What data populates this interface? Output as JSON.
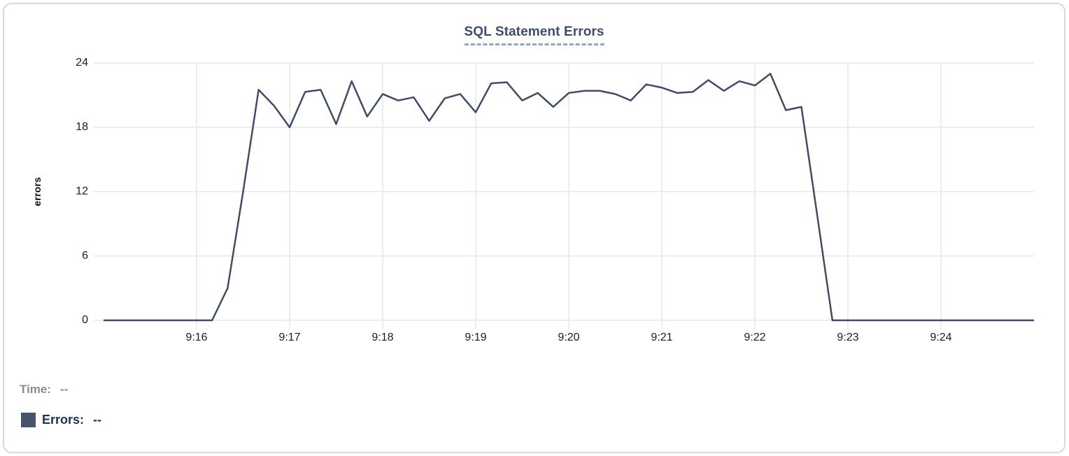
{
  "title": "SQL Statement Errors",
  "chart_data": {
    "type": "line",
    "title": "SQL Statement Errors",
    "xlabel": "",
    "ylabel": "errors",
    "ylim": [
      0,
      24
    ],
    "yticks": [
      0,
      6,
      12,
      18,
      24
    ],
    "xticks": [
      {
        "label": "9:16",
        "sec": 60
      },
      {
        "label": "9:17",
        "sec": 120
      },
      {
        "label": "9:18",
        "sec": 180
      },
      {
        "label": "9:19",
        "sec": 240
      },
      {
        "label": "9:20",
        "sec": 300
      },
      {
        "label": "9:21",
        "sec": 360
      },
      {
        "label": "9:22",
        "sec": 420
      },
      {
        "label": "9:23",
        "sec": 480
      },
      {
        "label": "9:24",
        "sec": 540
      }
    ],
    "grid": true,
    "legend_position": "bottom-left",
    "x_start_time": "9:15:00",
    "x_step_seconds": 10,
    "series": [
      {
        "name": "Errors",
        "color": "#3f4d68",
        "values": [
          0,
          0,
          0,
          0,
          0,
          0,
          0,
          0,
          3,
          12,
          21.5,
          20,
          18,
          21.3,
          21.5,
          18.3,
          22.3,
          19,
          21.1,
          20.5,
          20.8,
          18.6,
          20.7,
          21.1,
          19.4,
          22.1,
          22.2,
          20.5,
          21.2,
          19.9,
          21.2,
          21.4,
          21.4,
          21.1,
          20.5,
          22,
          21.7,
          21.2,
          21.3,
          22.4,
          21.4,
          22.3,
          21.9,
          23,
          19.6,
          19.9,
          10,
          0,
          0,
          0,
          0,
          0,
          0,
          0,
          0,
          0,
          0,
          0,
          0,
          0,
          0
        ]
      }
    ]
  },
  "readout": {
    "time_label": "Time:",
    "time_value": "--",
    "errors_label": "Errors:",
    "errors_value": "--",
    "swatch_color": "#47546e"
  },
  "colors": {
    "line": "#3f4d68",
    "grid": "#ededed",
    "title": "#3d4d6e",
    "title_underline": "#97a4c2",
    "tick_text": "#1c1c1e",
    "time_text": "#8b8b90",
    "errors_text": "#21315a",
    "card_border": "#d9d9d9",
    "background": "#ffffff"
  }
}
